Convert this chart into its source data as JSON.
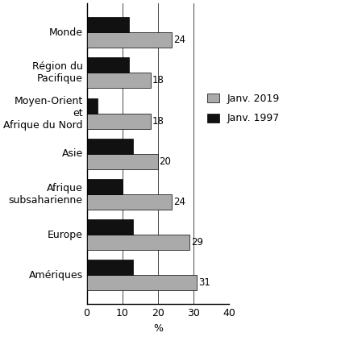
{
  "categories": [
    "Monde",
    "Région du\nPacifique",
    "Moyen-Orient\net\nAfrique du Nord",
    "Asie",
    "Afrique\nsubsaharienne",
    "Europe",
    "Amériques"
  ],
  "values_2019": [
    24,
    18,
    18,
    20,
    24,
    29,
    31
  ],
  "values_1997": [
    12,
    12,
    3,
    13,
    10,
    13,
    13
  ],
  "color_2019": "#aaaaaa",
  "color_1997": "#111111",
  "legend_2019": "Janv. 2019",
  "legend_1997": "Janv. 1997",
  "xlabel": "%",
  "xlim": [
    0,
    40
  ],
  "xticks": [
    0,
    10,
    20,
    30,
    40
  ],
  "bar_height": 0.38,
  "label_fontsize": 8.5,
  "tick_fontsize": 9,
  "legend_fontsize": 9,
  "background_color": "#ffffff"
}
